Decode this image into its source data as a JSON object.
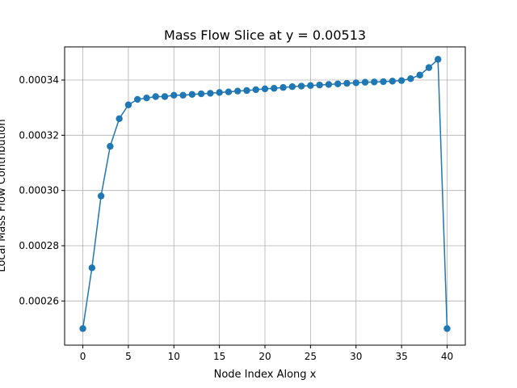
{
  "chart_data": {
    "type": "line",
    "title": "Mass Flow Slice at y = 0.00513",
    "xlabel": "Node Index Along x",
    "ylabel": "Local Mass Flow Contribution",
    "xlim": [
      -2,
      42
    ],
    "ylim": [
      0.000244,
      0.000352
    ],
    "xticks": [
      0,
      5,
      10,
      15,
      20,
      25,
      30,
      35,
      40
    ],
    "xtick_labels": [
      "0",
      "5",
      "10",
      "15",
      "20",
      "25",
      "30",
      "35",
      "40"
    ],
    "yticks": [
      0.00026,
      0.00028,
      0.0003,
      0.00032,
      0.00034
    ],
    "ytick_labels": [
      "0.00026",
      "0.00028",
      "0.00030",
      "0.00032",
      "0.00034"
    ],
    "grid": true,
    "legend": "none",
    "series": [
      {
        "color": "#1f77b4",
        "marker": "circle",
        "x": [
          0,
          1,
          2,
          3,
          4,
          5,
          6,
          7,
          8,
          9,
          10,
          11,
          12,
          13,
          14,
          15,
          16,
          17,
          18,
          19,
          20,
          21,
          22,
          23,
          24,
          25,
          26,
          27,
          28,
          29,
          30,
          31,
          32,
          33,
          34,
          35,
          36,
          37,
          38,
          39,
          40
        ],
        "values": [
          0.00025,
          0.000272,
          0.000298,
          0.000316,
          0.000326,
          0.000331,
          0.000333,
          0.0003335,
          0.000334,
          0.000334,
          0.0003345,
          0.0003345,
          0.0003348,
          0.000335,
          0.0003352,
          0.0003355,
          0.0003357,
          0.000336,
          0.0003362,
          0.0003365,
          0.0003368,
          0.000337,
          0.0003373,
          0.0003376,
          0.0003378,
          0.000338,
          0.0003382,
          0.0003384,
          0.0003386,
          0.0003388,
          0.000339,
          0.0003392,
          0.0003393,
          0.0003394,
          0.0003396,
          0.0003398,
          0.0003405,
          0.0003418,
          0.0003445,
          0.0003475,
          0.00025
        ]
      }
    ]
  }
}
